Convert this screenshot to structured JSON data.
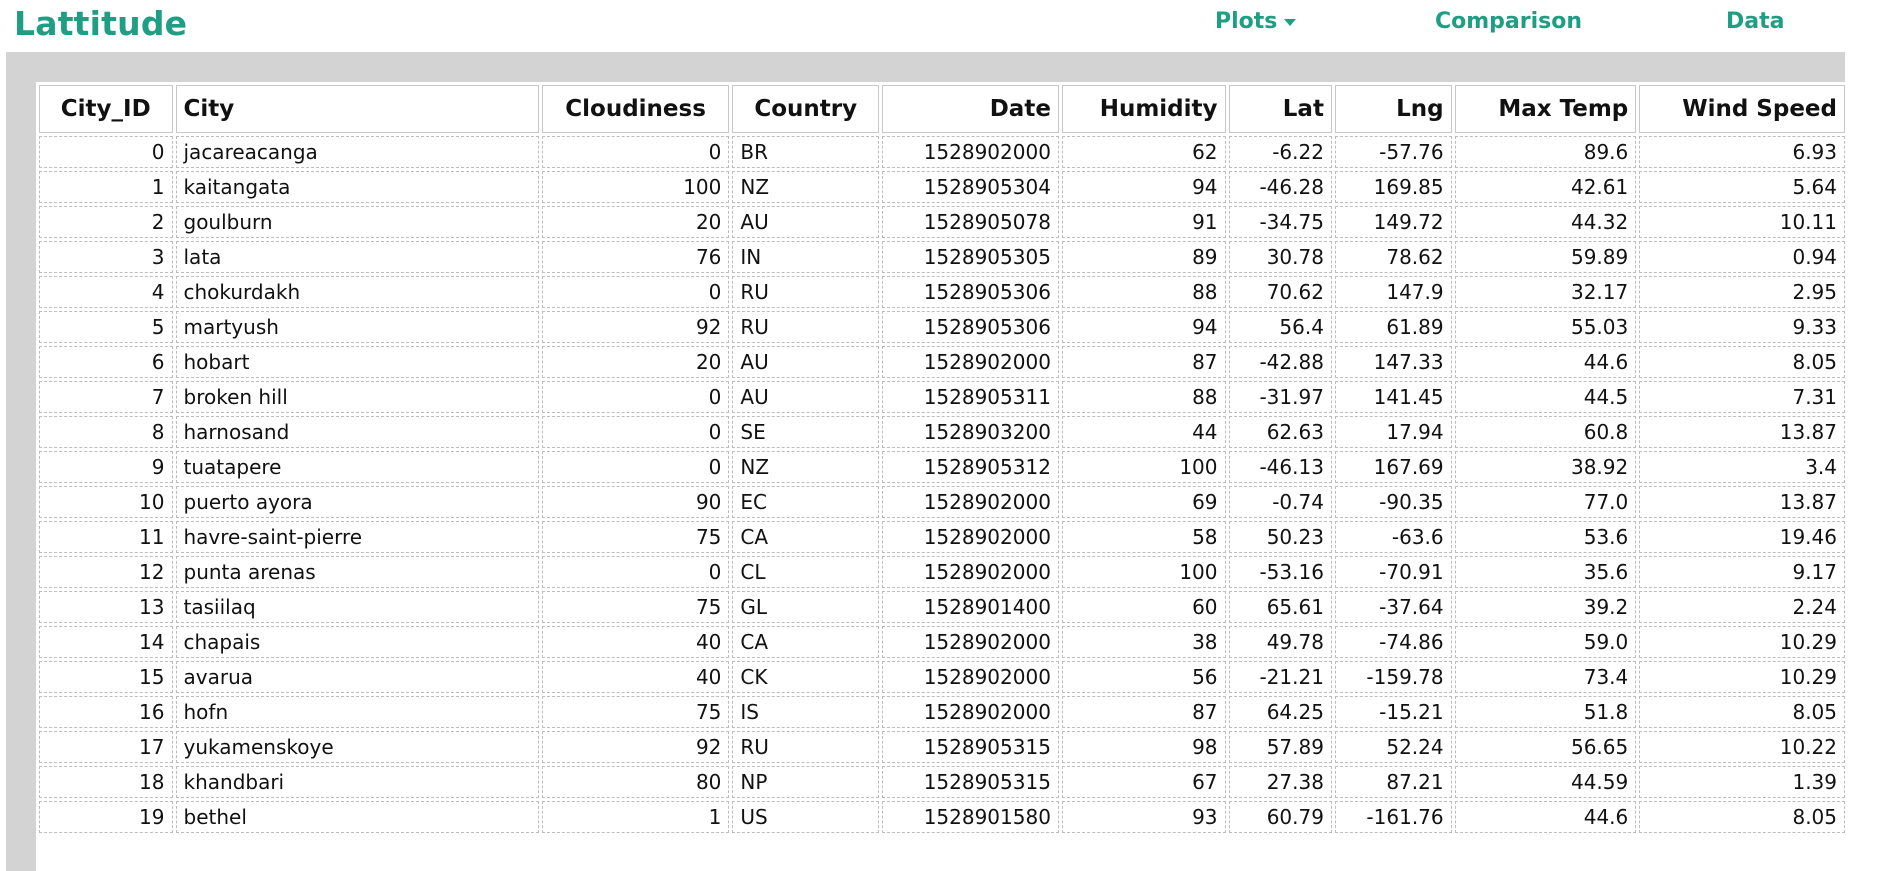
{
  "navbar": {
    "brand": "Lattitude",
    "links": {
      "plots": "Plots",
      "comparison": "Comparison",
      "data": "Data"
    }
  },
  "table": {
    "columns": [
      "City_ID",
      "City",
      "Cloudiness",
      "Country",
      "Date",
      "Humidity",
      "Lat",
      "Lng",
      "Max Temp",
      "Wind Speed"
    ],
    "rows": [
      [
        "0",
        "jacareacanga",
        "0",
        "BR",
        "1528902000",
        "62",
        "-6.22",
        "-57.76",
        "89.6",
        "6.93"
      ],
      [
        "1",
        "kaitangata",
        "100",
        "NZ",
        "1528905304",
        "94",
        "-46.28",
        "169.85",
        "42.61",
        "5.64"
      ],
      [
        "2",
        "goulburn",
        "20",
        "AU",
        "1528905078",
        "91",
        "-34.75",
        "149.72",
        "44.32",
        "10.11"
      ],
      [
        "3",
        "lata",
        "76",
        "IN",
        "1528905305",
        "89",
        "30.78",
        "78.62",
        "59.89",
        "0.94"
      ],
      [
        "4",
        "chokurdakh",
        "0",
        "RU",
        "1528905306",
        "88",
        "70.62",
        "147.9",
        "32.17",
        "2.95"
      ],
      [
        "5",
        "martyush",
        "92",
        "RU",
        "1528905306",
        "94",
        "56.4",
        "61.89",
        "55.03",
        "9.33"
      ],
      [
        "6",
        "hobart",
        "20",
        "AU",
        "1528902000",
        "87",
        "-42.88",
        "147.33",
        "44.6",
        "8.05"
      ],
      [
        "7",
        "broken hill",
        "0",
        "AU",
        "1528905311",
        "88",
        "-31.97",
        "141.45",
        "44.5",
        "7.31"
      ],
      [
        "8",
        "harnosand",
        "0",
        "SE",
        "1528903200",
        "44",
        "62.63",
        "17.94",
        "60.8",
        "13.87"
      ],
      [
        "9",
        "tuatapere",
        "0",
        "NZ",
        "1528905312",
        "100",
        "-46.13",
        "167.69",
        "38.92",
        "3.4"
      ],
      [
        "10",
        "puerto ayora",
        "90",
        "EC",
        "1528902000",
        "69",
        "-0.74",
        "-90.35",
        "77.0",
        "13.87"
      ],
      [
        "11",
        "havre-saint-pierre",
        "75",
        "CA",
        "1528902000",
        "58",
        "50.23",
        "-63.6",
        "53.6",
        "19.46"
      ],
      [
        "12",
        "punta arenas",
        "0",
        "CL",
        "1528902000",
        "100",
        "-53.16",
        "-70.91",
        "35.6",
        "9.17"
      ],
      [
        "13",
        "tasiilaq",
        "75",
        "GL",
        "1528901400",
        "60",
        "65.61",
        "-37.64",
        "39.2",
        "2.24"
      ],
      [
        "14",
        "chapais",
        "40",
        "CA",
        "1528902000",
        "38",
        "49.78",
        "-74.86",
        "59.0",
        "10.29"
      ],
      [
        "15",
        "avarua",
        "40",
        "CK",
        "1528902000",
        "56",
        "-21.21",
        "-159.78",
        "73.4",
        "10.29"
      ],
      [
        "16",
        "hofn",
        "75",
        "IS",
        "1528902000",
        "87",
        "64.25",
        "-15.21",
        "51.8",
        "8.05"
      ],
      [
        "17",
        "yukamenskoye",
        "92",
        "RU",
        "1528905315",
        "98",
        "57.89",
        "52.24",
        "56.65",
        "10.22"
      ],
      [
        "18",
        "khandbari",
        "80",
        "NP",
        "1528905315",
        "67",
        "27.38",
        "87.21",
        "44.59",
        "1.39"
      ],
      [
        "19",
        "bethel",
        "1",
        "US",
        "1528901580",
        "93",
        "60.79",
        "-161.76",
        "44.6",
        "8.05"
      ]
    ]
  }
}
